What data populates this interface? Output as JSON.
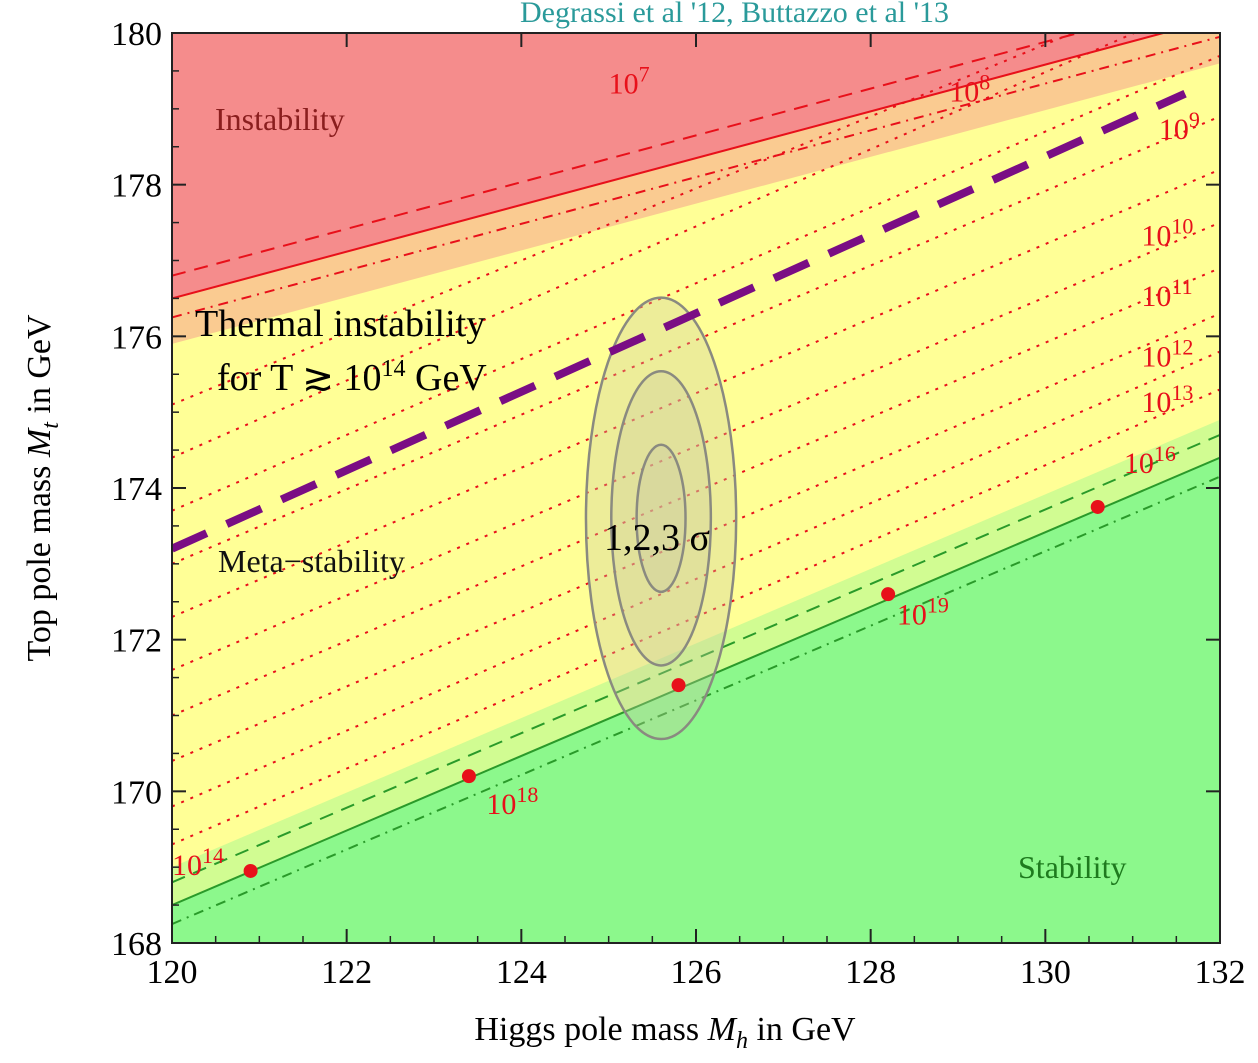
{
  "header": {
    "title_fragment": "Degrassi et al '12, Buttazzo et al '13"
  },
  "chart_data": {
    "type": "contour",
    "xlabel": "Higgs pole mass",
    "xlabel_symbol": "M",
    "xlabel_sub": "h",
    "xlabel_unit": " in GeV",
    "ylabel": "Top pole mass ",
    "ylabel_symbol": "M",
    "ylabel_sub": "t",
    "ylabel_unit": " in GeV",
    "xlim": [
      120,
      132
    ],
    "ylim": [
      168,
      180
    ],
    "xticks": [
      "120",
      "122",
      "124",
      "126",
      "128",
      "130",
      "132"
    ],
    "yticks": [
      "168",
      "170",
      "172",
      "174",
      "176",
      "178",
      "180"
    ],
    "colors": {
      "instability": "#f58c8c",
      "metastability": "#ffff96",
      "stability": "#8cf88c",
      "scale_lines": "#e8101a",
      "stability_line": "#2a9a2a",
      "thermal_line": "#7a0d84",
      "ellipse_fill": "#c8c8a0",
      "ellipse_stroke": "#8a8a80"
    },
    "regions": {
      "instability": "Instability",
      "metastability": "Meta−stability",
      "stability": "Stability"
    },
    "instability_boundary": {
      "x": [
        120,
        132
      ],
      "y": [
        176.5,
        180.2
      ],
      "band": [
        0.3,
        0.25
      ]
    },
    "stability_boundary": {
      "x": [
        120,
        132
      ],
      "y": [
        168.5,
        174.4
      ],
      "band": [
        0.3,
        0.25
      ]
    },
    "scale_lines": [
      {
        "x": [
          120,
          132
        ],
        "y": [
          175.1,
          180.8
        ]
      },
      {
        "x": [
          120,
          132
        ],
        "y": [
          174.4,
          180.5
        ]
      },
      {
        "x": [
          120,
          132
        ],
        "y": [
          173.7,
          179.7
        ]
      },
      {
        "x": [
          120,
          132
        ],
        "y": [
          173.0,
          178.9
        ]
      },
      {
        "x": [
          120,
          132
        ],
        "y": [
          172.3,
          178.2
        ]
      },
      {
        "x": [
          120,
          132
        ],
        "y": [
          171.6,
          177.5
        ]
      },
      {
        "x": [
          120,
          132
        ],
        "y": [
          171.0,
          176.9
        ]
      },
      {
        "x": [
          120,
          132
        ],
        "y": [
          170.4,
          176.3
        ]
      },
      {
        "x": [
          120,
          132
        ],
        "y": [
          169.8,
          175.8
        ]
      },
      {
        "x": [
          120,
          132
        ],
        "y": [
          169.3,
          175.3
        ]
      }
    ],
    "scale_labels": [
      {
        "base": "10",
        "exp": "7",
        "x": 125.0,
        "y": 179.2
      },
      {
        "base": "10",
        "exp": "8",
        "x": 128.9,
        "y": 179.1
      },
      {
        "base": "10",
        "exp": "9",
        "x": 131.3,
        "y": 178.6
      },
      {
        "base": "10",
        "exp": "10",
        "x": 131.1,
        "y": 177.2
      },
      {
        "base": "10",
        "exp": "11",
        "x": 131.1,
        "y": 176.4
      },
      {
        "base": "10",
        "exp": "12",
        "x": 131.1,
        "y": 175.6
      },
      {
        "base": "10",
        "exp": "13",
        "x": 131.1,
        "y": 175.0
      },
      {
        "base": "10",
        "exp": "16",
        "x": 130.9,
        "y": 174.2
      },
      {
        "base": "10",
        "exp": "14",
        "x": 120.0,
        "y": 168.9
      },
      {
        "base": "10",
        "exp": "18",
        "x": 123.6,
        "y": 169.7
      },
      {
        "base": "10",
        "exp": "19",
        "x": 128.3,
        "y": 172.2
      }
    ],
    "points": [
      {
        "x": 120.9,
        "y": 168.95
      },
      {
        "x": 123.4,
        "y": 170.2
      },
      {
        "x": 125.8,
        "y": 171.4
      },
      {
        "x": 128.2,
        "y": 172.6
      },
      {
        "x": 130.6,
        "y": 173.75
      }
    ],
    "thermal_line": {
      "x": [
        120,
        131.6
      ],
      "y": [
        173.2,
        179.2
      ],
      "label_line1": "Thermal instability",
      "label_line2_pre": "for T ≳ 10",
      "label_line2_exp": "14",
      "label_line2_post": " GeV"
    },
    "ellipse": {
      "center_x": 125.6,
      "center_y": 173.6,
      "sigma_x": [
        0.28,
        0.57,
        0.86
      ],
      "sigma_y": [
        0.97,
        1.94,
        2.91
      ],
      "label": "1,2,3 σ"
    }
  }
}
